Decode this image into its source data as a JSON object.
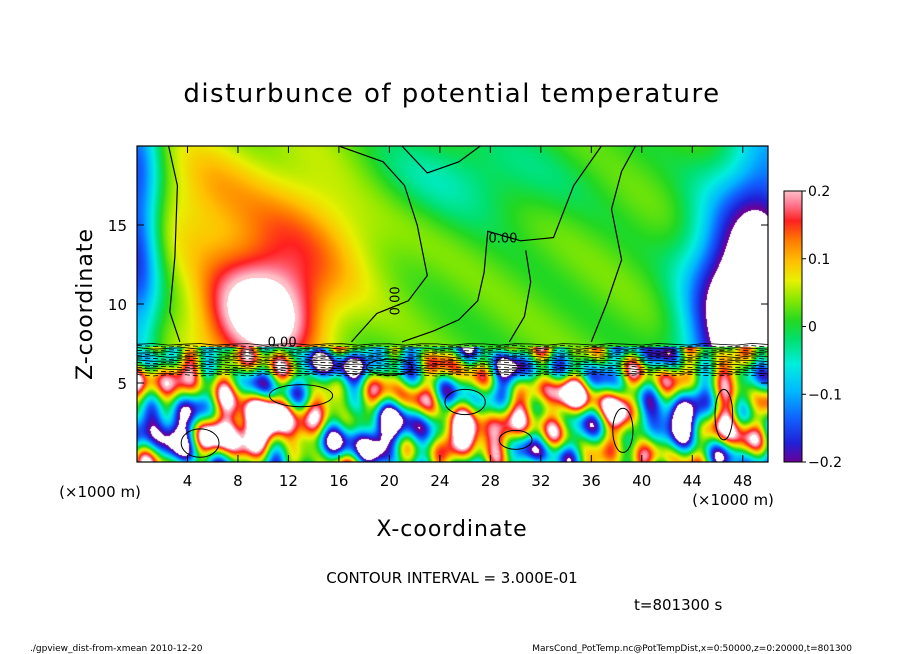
{
  "chart_data": {
    "type": "heatmap",
    "title": "disturbunce of potential temperature",
    "xlabel": "X-coordinate",
    "ylabel": "Z-coordinate",
    "x_unit_label": "(×1000 m)",
    "y_unit_label": "(×1000 m)",
    "xlim": [
      0,
      50
    ],
    "ylim": [
      0,
      20
    ],
    "x_ticks": [
      4,
      8,
      12,
      16,
      20,
      24,
      28,
      32,
      36,
      40,
      44,
      48
    ],
    "y_ticks": [
      5,
      10,
      15
    ],
    "colorbar": {
      "range": [
        -0.2,
        0.2
      ],
      "ticks": [
        {
          "value": 0.2,
          "label": "0.2"
        },
        {
          "value": 0.1,
          "label": "0.1"
        },
        {
          "value": 0,
          "label": "0"
        },
        {
          "value": -0.1,
          "label": "−0.1"
        },
        {
          "value": -0.2,
          "label": "−0.2"
        }
      ]
    },
    "contour_labels": [
      {
        "text": "0.00",
        "x": 29.0,
        "z": 13.9
      },
      {
        "text": "0.00",
        "x": 20.8,
        "z": 10.2
      },
      {
        "text": "0.00",
        "x": 11.5,
        "z": 7.3
      }
    ],
    "contour_interval_text": "CONTOUR INTERVAL = 3.000E-01",
    "time_text": "t=801300 s",
    "colors": {
      "warm_core": "#ff2a2a",
      "cool_core": "#2222c8",
      "neutral": "#22d822"
    }
  },
  "footer": {
    "left": "./gpview_dist-from-xmean   2010-12-20",
    "right": "MarsCond_PotTemp.nc@PotTempDist,x=0:50000,z=0:20000,t=801300"
  }
}
